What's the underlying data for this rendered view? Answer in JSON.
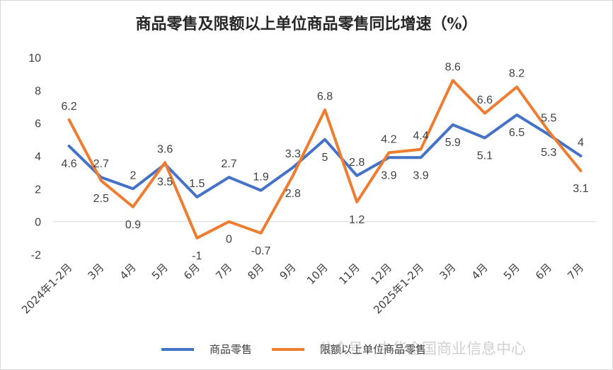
{
  "chart_data": {
    "type": "line",
    "title": "商品零售及限额以上单位商品零售同比增速（%）",
    "categories": [
      "2024年1-2月",
      "3月",
      "4月",
      "5月",
      "6月",
      "7月",
      "8月",
      "9月",
      "10月",
      "11月",
      "12月",
      "2025年1-2月",
      "3月",
      "4月",
      "5月",
      "6月",
      "7月"
    ],
    "series": [
      {
        "name": "商品零售",
        "color": "#4472C4",
        "values": [
          4.6,
          2.7,
          2.0,
          3.5,
          1.5,
          2.7,
          1.9,
          3.3,
          5.0,
          2.8,
          3.9,
          3.9,
          5.9,
          5.1,
          6.5,
          5.3,
          4.0
        ],
        "labels": [
          "4.6",
          "2.7",
          "2",
          "3.5",
          "1.5",
          "2.7",
          "1.9",
          "3.3",
          "5",
          "2.8",
          "3.9",
          "3.9",
          "5.9",
          "5.1",
          "6.5",
          "5.3",
          "4"
        ]
      },
      {
        "name": "限额以上单位商品零售",
        "color": "#ED7D31",
        "values": [
          6.2,
          2.5,
          0.9,
          3.6,
          -1.0,
          0.0,
          -0.7,
          2.8,
          6.8,
          1.2,
          4.2,
          4.4,
          8.6,
          6.6,
          8.2,
          5.5,
          3.1
        ],
        "labels": [
          "6.2",
          "2.5",
          "0.9",
          "3.6",
          "-1",
          "0",
          "-0.7",
          "2.8",
          "6.8",
          "1.2",
          "4.2",
          "4.4",
          "8.6",
          "6.6",
          "8.2",
          "5.5",
          "3.1"
        ]
      }
    ],
    "ylim": [
      -2,
      10
    ],
    "yticks": [
      -2,
      0,
      2,
      4,
      6,
      8,
      10
    ],
    "ytick_labels": [
      "-2",
      "0",
      "2",
      "4",
      "6",
      "8",
      "10"
    ],
    "grid": false,
    "legend": "bottom"
  },
  "watermark": "公众号 · 中华全国商业信息中心"
}
